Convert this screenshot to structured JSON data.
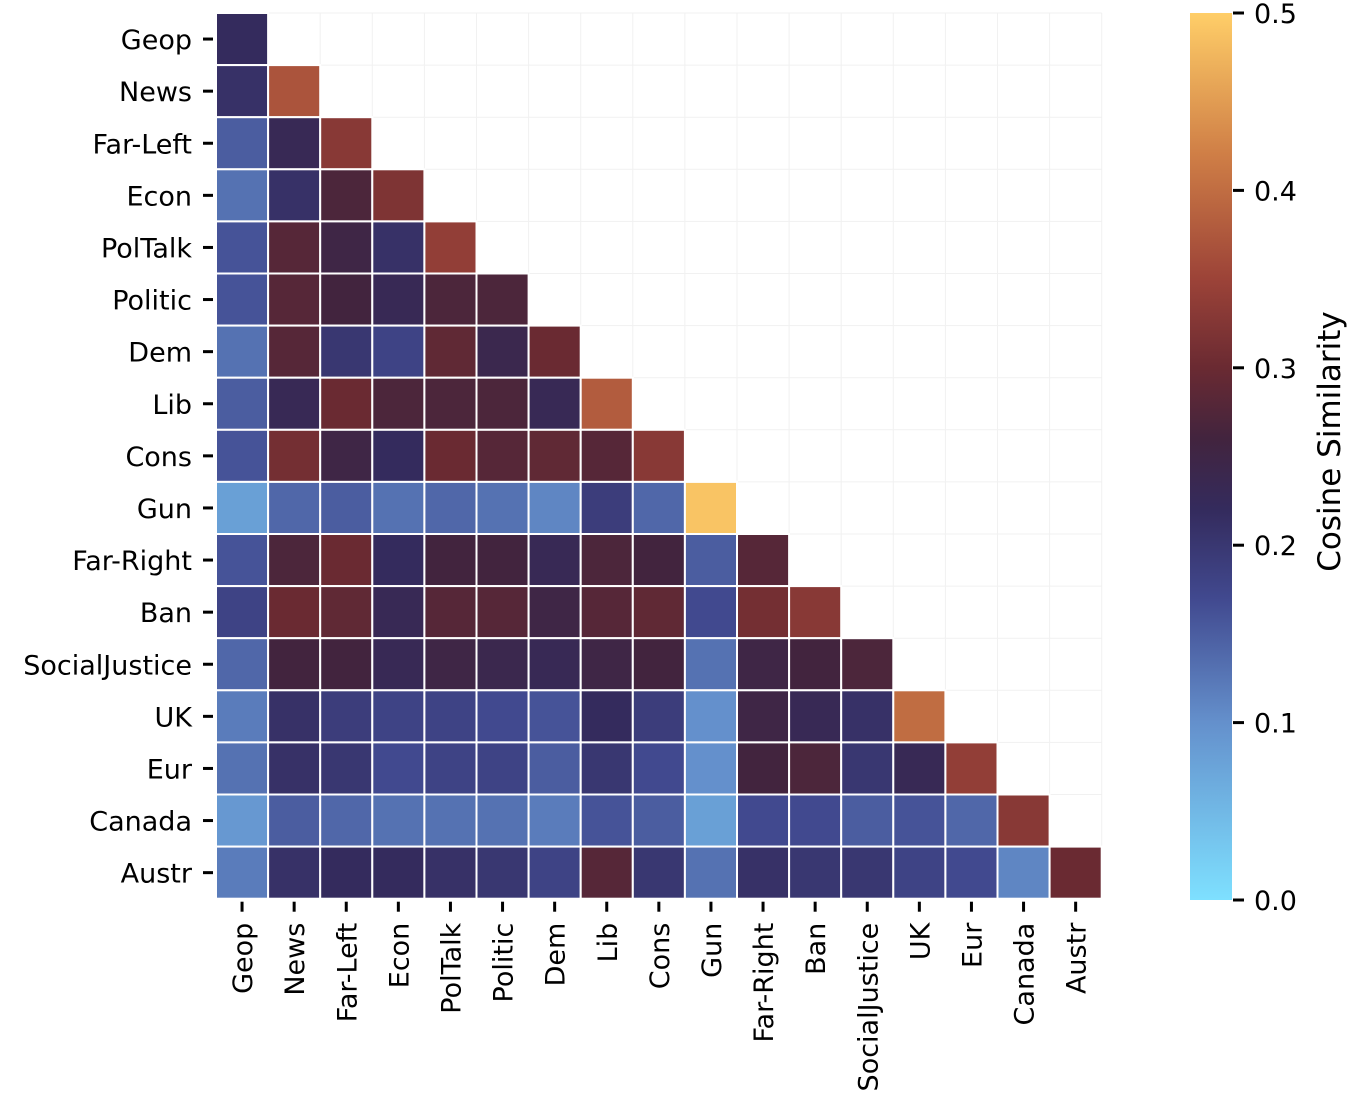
{
  "chart_data": {
    "type": "heatmap",
    "title": "",
    "xlabel": "",
    "ylabel": "",
    "labels": [
      "Geop",
      "News",
      "Far-Left",
      "Econ",
      "PolTalk",
      "Politic",
      "Dem",
      "Lib",
      "Cons",
      "Gun",
      "Far-Right",
      "Ban",
      "SocialJustice",
      "UK",
      "Eur",
      "Canada",
      "Austr"
    ],
    "mask": "upper-triangle",
    "values": [
      [
        0.22
      ],
      [
        0.21,
        0.37
      ],
      [
        0.15,
        0.23,
        0.33
      ],
      [
        0.13,
        0.21,
        0.27,
        0.32
      ],
      [
        0.16,
        0.28,
        0.25,
        0.21,
        0.34
      ],
      [
        0.16,
        0.28,
        0.26,
        0.23,
        0.27,
        0.27
      ],
      [
        0.13,
        0.28,
        0.2,
        0.18,
        0.29,
        0.24,
        0.3
      ],
      [
        0.15,
        0.23,
        0.3,
        0.27,
        0.27,
        0.27,
        0.23,
        0.38
      ],
      [
        0.16,
        0.31,
        0.25,
        0.22,
        0.3,
        0.28,
        0.29,
        0.28,
        0.33
      ],
      [
        0.08,
        0.14,
        0.15,
        0.13,
        0.14,
        0.13,
        0.11,
        0.19,
        0.14,
        0.49
      ],
      [
        0.16,
        0.27,
        0.3,
        0.22,
        0.26,
        0.26,
        0.23,
        0.27,
        0.26,
        0.15,
        0.28
      ],
      [
        0.18,
        0.3,
        0.29,
        0.23,
        0.28,
        0.28,
        0.25,
        0.28,
        0.29,
        0.17,
        0.31,
        0.33
      ],
      [
        0.14,
        0.26,
        0.26,
        0.23,
        0.25,
        0.24,
        0.23,
        0.25,
        0.26,
        0.13,
        0.25,
        0.26,
        0.27
      ],
      [
        0.12,
        0.21,
        0.19,
        0.18,
        0.18,
        0.17,
        0.16,
        0.22,
        0.19,
        0.1,
        0.25,
        0.23,
        0.21,
        0.4
      ],
      [
        0.13,
        0.21,
        0.2,
        0.17,
        0.18,
        0.18,
        0.15,
        0.2,
        0.17,
        0.1,
        0.26,
        0.27,
        0.2,
        0.23,
        0.34
      ],
      [
        0.09,
        0.15,
        0.14,
        0.13,
        0.13,
        0.13,
        0.12,
        0.16,
        0.15,
        0.08,
        0.17,
        0.17,
        0.15,
        0.16,
        0.14,
        0.33
      ],
      [
        0.12,
        0.21,
        0.22,
        0.22,
        0.21,
        0.2,
        0.18,
        0.28,
        0.2,
        0.13,
        0.21,
        0.2,
        0.2,
        0.18,
        0.17,
        0.11,
        0.3
      ]
    ],
    "colorbar": {
      "label": "Cosine Similarity",
      "min": 0.0,
      "max": 0.5,
      "ticks": [
        "0.0",
        "0.1",
        "0.2",
        "0.3",
        "0.4",
        "0.5"
      ]
    },
    "colors": {
      "0.00": "#7ee0ff",
      "0.10": "#6490cc",
      "0.17": "#41498f",
      "0.22": "#342b5d",
      "0.26": "#42243e",
      "0.30": "#6a2a32",
      "0.35": "#9c4338",
      "0.42": "#cf7e46",
      "0.50": "#ffce68"
    }
  }
}
